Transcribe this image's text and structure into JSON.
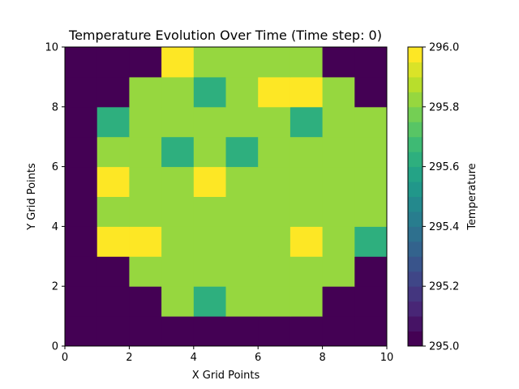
{
  "chart_data": {
    "type": "heatmap",
    "title": "Temperature Evolution Over Time (Time step: 0)",
    "xlabel": "X Grid Points",
    "ylabel": "Y Grid Points",
    "xlim": [
      0,
      10
    ],
    "ylim": [
      0,
      10
    ],
    "xticks": [
      "0",
      "2",
      "4",
      "6",
      "8",
      "10"
    ],
    "yticks": [
      "0",
      "2",
      "4",
      "6",
      "8",
      "10"
    ],
    "colormap": "viridis",
    "colorbar": {
      "label": "Temperature",
      "vmin": 295.0,
      "vmax": 296.0,
      "levels": 20,
      "ticks": [
        "295.0",
        "295.2",
        "295.4",
        "295.6",
        "295.8",
        "296.0"
      ]
    },
    "grid_note": "rows listed from y=0 (bottom) to y=9 (top); columns x=0..9",
    "values": [
      [
        295.0,
        295.0,
        295.0,
        295.0,
        295.0,
        295.0,
        295.0,
        295.0,
        295.0,
        295.0
      ],
      [
        295.0,
        295.0,
        295.0,
        295.8,
        295.6,
        295.8,
        295.8,
        295.8,
        295.0,
        295.0
      ],
      [
        295.0,
        295.0,
        295.8,
        295.8,
        295.8,
        295.8,
        295.8,
        295.8,
        295.8,
        295.0
      ],
      [
        295.0,
        296.0,
        296.0,
        295.8,
        295.8,
        295.8,
        295.8,
        296.0,
        295.8,
        295.6
      ],
      [
        295.0,
        295.8,
        295.8,
        295.8,
        295.8,
        295.8,
        295.8,
        295.8,
        295.8,
        295.8
      ],
      [
        295.0,
        296.0,
        295.8,
        295.8,
        296.0,
        295.8,
        295.8,
        295.8,
        295.8,
        295.8
      ],
      [
        295.0,
        295.8,
        295.8,
        295.6,
        295.8,
        295.6,
        295.8,
        295.8,
        295.8,
        295.8
      ],
      [
        295.0,
        295.6,
        295.8,
        295.8,
        295.8,
        295.8,
        295.8,
        295.6,
        295.8,
        295.8
      ],
      [
        295.0,
        295.0,
        295.8,
        295.8,
        295.6,
        295.8,
        296.0,
        296.0,
        295.8,
        295.0
      ],
      [
        295.0,
        295.0,
        295.0,
        296.0,
        295.8,
        295.8,
        295.8,
        295.8,
        295.0,
        295.0
      ]
    ]
  }
}
